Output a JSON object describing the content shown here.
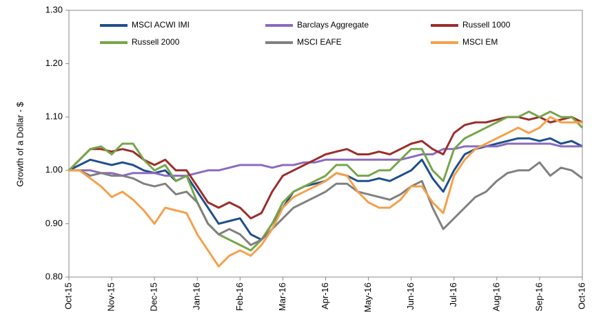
{
  "chart_data": {
    "type": "line",
    "ylabel": "Growth of a Dollar - $",
    "categories": [
      "Oct-15",
      null,
      null,
      null,
      "Nov-15",
      null,
      null,
      null,
      "Dec-15",
      null,
      null,
      null,
      "Jan-16",
      null,
      null,
      null,
      "Feb-16",
      null,
      null,
      null,
      "Mar-16",
      null,
      null,
      null,
      "Apr-16",
      null,
      null,
      null,
      "May-16",
      null,
      null,
      null,
      "Jun-16",
      null,
      null,
      null,
      "Jul-16",
      null,
      null,
      null,
      "Aug-16",
      null,
      null,
      null,
      "Sep-16",
      null,
      null,
      null,
      "Oct-16"
    ],
    "ylim": [
      0.8,
      1.3
    ],
    "yticks": [
      {
        "value": 0.8,
        "label": "0.80"
      },
      {
        "value": 0.9,
        "label": "0.90"
      },
      {
        "value": 1.0,
        "label": "1.00"
      },
      {
        "value": 1.1,
        "label": "1.10"
      },
      {
        "value": 1.2,
        "label": "1.20"
      },
      {
        "value": 1.3,
        "label": "1.30"
      }
    ],
    "grid": false,
    "legend": "top",
    "series": [
      {
        "name": "MSCI ACWI IMI",
        "color": "#1f4e8c",
        "values": [
          1.0,
          1.01,
          1.02,
          1.015,
          1.01,
          1.015,
          1.01,
          1.0,
          0.995,
          1.0,
          0.98,
          0.99,
          0.96,
          0.93,
          0.9,
          0.905,
          0.91,
          0.88,
          0.87,
          0.9,
          0.93,
          0.96,
          0.97,
          0.975,
          0.98,
          0.995,
          0.99,
          0.98,
          0.98,
          0.985,
          0.98,
          0.99,
          1.0,
          1.02,
          0.985,
          0.96,
          1.0,
          1.03,
          1.04,
          1.045,
          1.05,
          1.055,
          1.06,
          1.06,
          1.055,
          1.06,
          1.05,
          1.055,
          1.045
        ]
      },
      {
        "name": "Barclays Aggregate",
        "color": "#8a6bbf",
        "values": [
          1.0,
          1.0,
          1.0,
          0.995,
          0.995,
          0.99,
          0.995,
          0.995,
          0.995,
          0.99,
          0.99,
          0.99,
          0.995,
          1.0,
          1.0,
          1.005,
          1.01,
          1.01,
          1.01,
          1.005,
          1.01,
          1.01,
          1.015,
          1.015,
          1.02,
          1.02,
          1.02,
          1.02,
          1.02,
          1.02,
          1.02,
          1.02,
          1.025,
          1.03,
          1.03,
          1.04,
          1.04,
          1.045,
          1.045,
          1.045,
          1.045,
          1.05,
          1.05,
          1.05,
          1.05,
          1.05,
          1.045,
          1.045,
          1.045
        ]
      },
      {
        "name": "Russell 1000",
        "color": "#9b2d2a",
        "values": [
          1.0,
          1.02,
          1.04,
          1.04,
          1.035,
          1.04,
          1.035,
          1.02,
          1.01,
          1.02,
          1.0,
          1.0,
          0.97,
          0.94,
          0.93,
          0.94,
          0.93,
          0.91,
          0.92,
          0.96,
          0.99,
          1.0,
          1.01,
          1.02,
          1.03,
          1.035,
          1.04,
          1.03,
          1.03,
          1.035,
          1.03,
          1.04,
          1.05,
          1.055,
          1.04,
          1.03,
          1.07,
          1.085,
          1.09,
          1.09,
          1.095,
          1.1,
          1.1,
          1.095,
          1.1,
          1.09,
          1.095,
          1.1,
          1.09
        ]
      },
      {
        "name": "Russell 2000",
        "color": "#76a54a",
        "values": [
          1.0,
          1.02,
          1.04,
          1.045,
          1.03,
          1.05,
          1.05,
          1.02,
          1.0,
          1.01,
          0.98,
          0.99,
          0.94,
          0.9,
          0.88,
          0.87,
          0.86,
          0.85,
          0.87,
          0.9,
          0.94,
          0.96,
          0.97,
          0.98,
          0.99,
          1.01,
          1.01,
          0.99,
          0.99,
          1.0,
          1.0,
          1.02,
          1.04,
          1.04,
          1.0,
          0.98,
          1.04,
          1.06,
          1.07,
          1.08,
          1.09,
          1.1,
          1.1,
          1.11,
          1.1,
          1.11,
          1.1,
          1.1,
          1.08
        ]
      },
      {
        "name": "MSCI EAFE",
        "color": "#808080",
        "values": [
          1.0,
          1.0,
          0.99,
          0.995,
          0.99,
          0.99,
          0.985,
          0.975,
          0.97,
          0.975,
          0.955,
          0.96,
          0.94,
          0.9,
          0.88,
          0.89,
          0.88,
          0.86,
          0.87,
          0.89,
          0.91,
          0.93,
          0.94,
          0.95,
          0.96,
          0.975,
          0.975,
          0.96,
          0.955,
          0.95,
          0.945,
          0.955,
          0.97,
          0.98,
          0.93,
          0.89,
          0.91,
          0.93,
          0.95,
          0.96,
          0.98,
          0.995,
          1.0,
          1.0,
          1.015,
          0.99,
          1.005,
          1.0,
          0.985
        ]
      },
      {
        "name": "MSCI EM",
        "color": "#f5a04a",
        "values": [
          1.0,
          1.0,
          0.985,
          0.97,
          0.95,
          0.96,
          0.945,
          0.925,
          0.9,
          0.93,
          0.925,
          0.92,
          0.88,
          0.85,
          0.82,
          0.84,
          0.85,
          0.84,
          0.86,
          0.89,
          0.93,
          0.95,
          0.96,
          0.97,
          0.98,
          0.995,
          0.99,
          0.96,
          0.94,
          0.93,
          0.93,
          0.945,
          0.97,
          0.97,
          0.94,
          0.92,
          0.99,
          1.02,
          1.04,
          1.05,
          1.06,
          1.07,
          1.08,
          1.07,
          1.08,
          1.1,
          1.09,
          1.09,
          1.09
        ]
      }
    ]
  }
}
